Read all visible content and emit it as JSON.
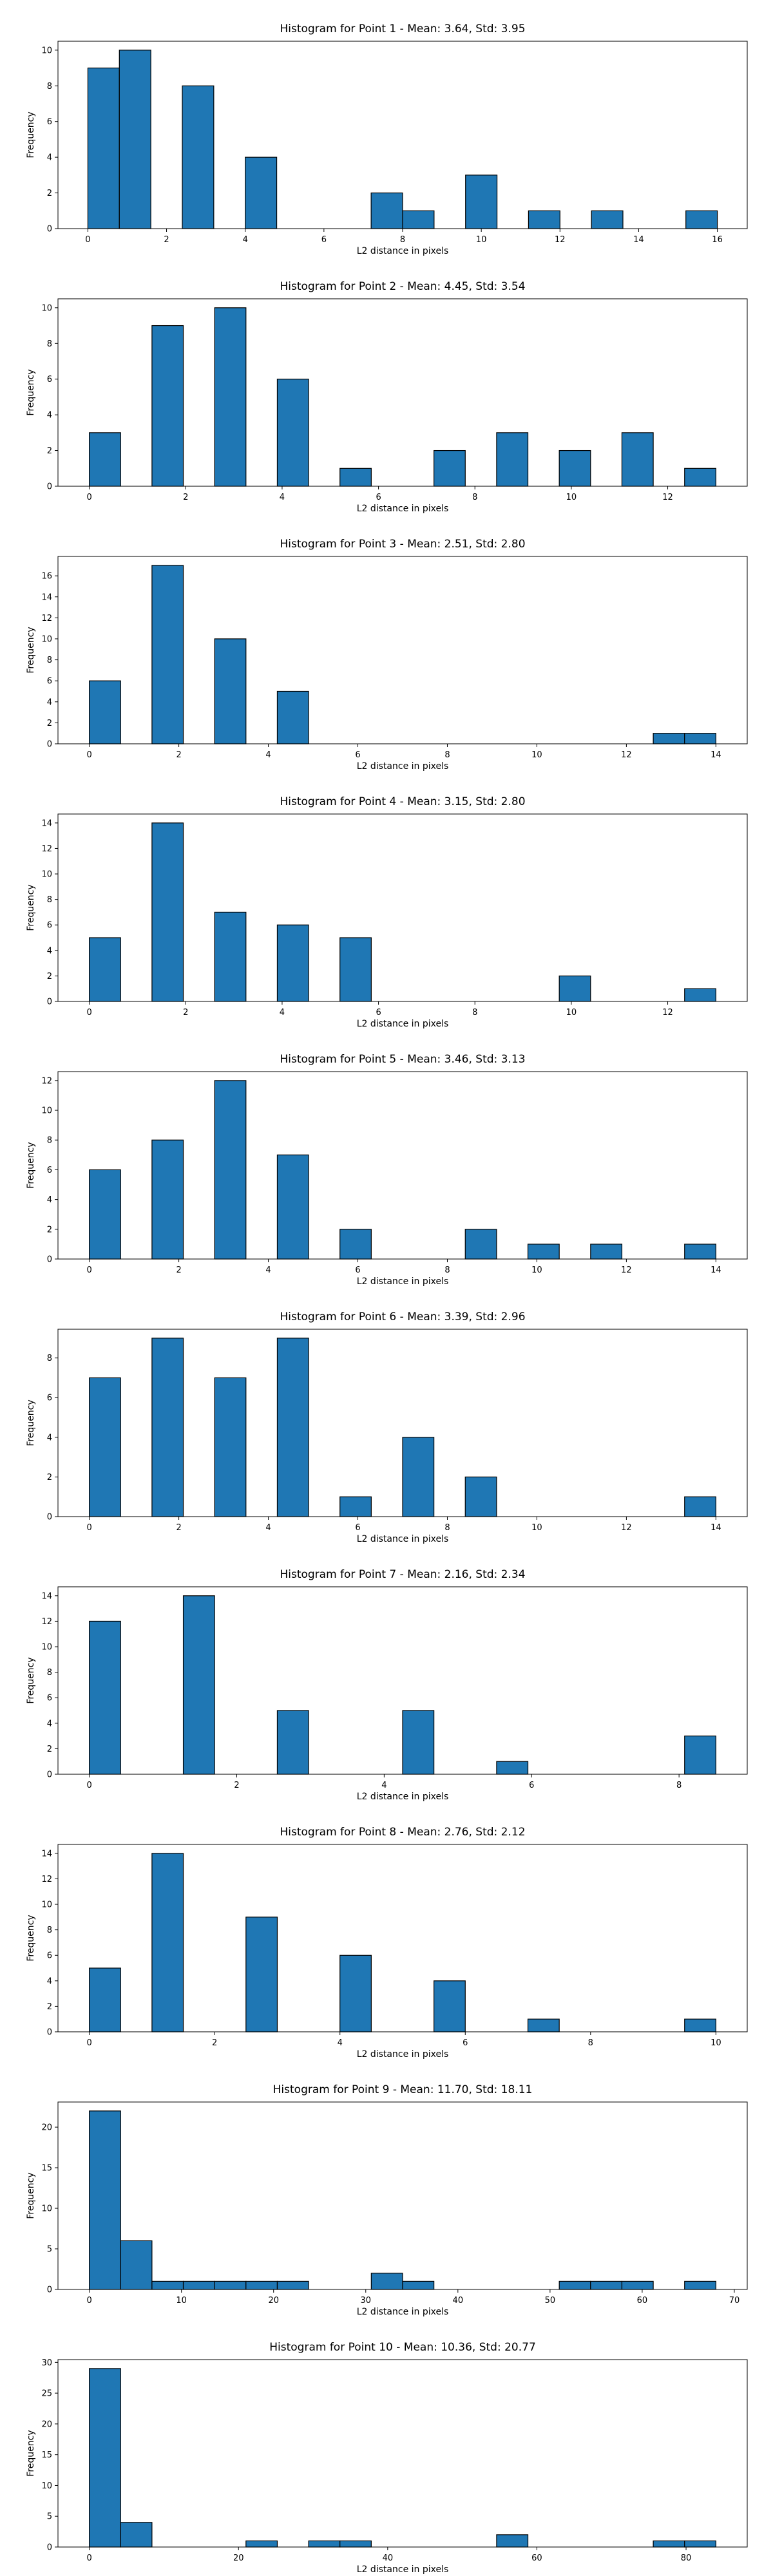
{
  "bar_color": "#1f77b4",
  "edge_color": "#000000",
  "chart_data": [
    {
      "type": "bar",
      "title": "Histogram for Point 1 - Mean: 3.64, Std: 3.95",
      "xlabel": "L2 distance in pixels",
      "ylabel": "Frequency",
      "bin_width": 0.8,
      "bin_starts": [
        0.0,
        0.8,
        1.6,
        2.4,
        3.2,
        4.0,
        4.8,
        5.6,
        6.4,
        7.2,
        8.0,
        8.8,
        9.6,
        10.4,
        11.2,
        12.0,
        12.8,
        13.6,
        14.4,
        15.2
      ],
      "values": [
        9,
        10,
        0,
        8,
        0,
        4,
        0,
        0,
        0,
        2,
        1,
        0,
        3,
        0,
        1,
        0,
        1,
        0,
        0,
        1
      ],
      "xlim": [
        -0.76,
        16.76
      ],
      "ylim": [
        0,
        10.5
      ],
      "xticks": [
        0,
        2,
        4,
        6,
        8,
        10,
        12,
        14,
        16
      ],
      "yticks": [
        0,
        2,
        4,
        6,
        8,
        10
      ]
    },
    {
      "type": "bar",
      "title": "Histogram for Point 2 - Mean: 4.45, Std: 3.54",
      "xlabel": "L2 distance in pixels",
      "ylabel": "Frequency",
      "bin_width": 0.65,
      "bin_starts": [
        0.0,
        0.65,
        1.3,
        1.95,
        2.6,
        3.25,
        3.9,
        4.55,
        5.2,
        5.85,
        6.5,
        7.15,
        7.8,
        8.45,
        9.1,
        9.75,
        10.4,
        11.05,
        11.7,
        12.35
      ],
      "values": [
        3,
        0,
        9,
        0,
        10,
        0,
        6,
        0,
        1,
        0,
        0,
        2,
        0,
        3,
        0,
        2,
        0,
        3,
        0,
        1
      ],
      "xlim": [
        -0.65,
        13.65
      ],
      "ylim": [
        0,
        10.5
      ],
      "xticks": [
        0,
        2,
        4,
        6,
        8,
        10,
        12
      ],
      "yticks": [
        0,
        2,
        4,
        6,
        8,
        10
      ]
    },
    {
      "type": "bar",
      "title": "Histogram for Point 3 - Mean: 2.51, Std: 2.80",
      "xlabel": "L2 distance in pixels",
      "ylabel": "Frequency",
      "bin_width": 0.7,
      "bin_starts": [
        0.0,
        0.7,
        1.4,
        2.1,
        2.8,
        3.5,
        4.2,
        4.9,
        5.6,
        6.3,
        7.0,
        7.7,
        8.4,
        9.1,
        9.8,
        10.5,
        11.2,
        11.9,
        12.6,
        13.3
      ],
      "values": [
        6,
        0,
        17,
        0,
        10,
        0,
        5,
        0,
        0,
        0,
        0,
        0,
        0,
        0,
        0,
        0,
        0,
        0,
        1,
        1
      ],
      "xlim": [
        -0.7,
        14.7
      ],
      "ylim": [
        0,
        17.85
      ],
      "xticks": [
        0,
        2,
        4,
        6,
        8,
        10,
        12,
        14
      ],
      "yticks": [
        0,
        2,
        4,
        6,
        8,
        10,
        12,
        14,
        16
      ]
    },
    {
      "type": "bar",
      "title": "Histogram for Point 4 - Mean: 3.15, Std: 2.80",
      "xlabel": "L2 distance in pixels",
      "ylabel": "Frequency",
      "bin_width": 0.65,
      "bin_starts": [
        0.0,
        0.65,
        1.3,
        1.95,
        2.6,
        3.25,
        3.9,
        4.55,
        5.2,
        5.85,
        6.5,
        7.15,
        7.8,
        8.45,
        9.1,
        9.75,
        10.4,
        11.05,
        11.7,
        12.35
      ],
      "values": [
        5,
        0,
        14,
        0,
        7,
        0,
        6,
        0,
        5,
        0,
        0,
        0,
        0,
        0,
        0,
        2,
        0,
        0,
        0,
        1
      ],
      "xlim": [
        -0.65,
        13.65
      ],
      "ylim": [
        0,
        14.7
      ],
      "xticks": [
        0,
        2,
        4,
        6,
        8,
        10,
        12
      ],
      "yticks": [
        0,
        2,
        4,
        6,
        8,
        10,
        12,
        14
      ]
    },
    {
      "type": "bar",
      "title": "Histogram for Point 5 - Mean: 3.46, Std: 3.13",
      "xlabel": "L2 distance in pixels",
      "ylabel": "Frequency",
      "bin_width": 0.7,
      "bin_starts": [
        0.0,
        0.7,
        1.4,
        2.1,
        2.8,
        3.5,
        4.2,
        4.9,
        5.6,
        6.3,
        7.0,
        7.7,
        8.4,
        9.1,
        9.8,
        10.5,
        11.2,
        11.9,
        12.6,
        13.3
      ],
      "values": [
        6,
        0,
        8,
        0,
        12,
        0,
        7,
        0,
        2,
        0,
        0,
        0,
        2,
        0,
        1,
        0,
        1,
        0,
        0,
        1
      ],
      "xlim": [
        -0.7,
        14.7
      ],
      "ylim": [
        0,
        12.6
      ],
      "xticks": [
        0,
        2,
        4,
        6,
        8,
        10,
        12,
        14
      ],
      "yticks": [
        0,
        2,
        4,
        6,
        8,
        10,
        12
      ]
    },
    {
      "type": "bar",
      "title": "Histogram for Point 6 - Mean: 3.39, Std: 2.96",
      "xlabel": "L2 distance in pixels",
      "ylabel": "Frequency",
      "bin_width": 0.7,
      "bin_starts": [
        0.0,
        0.7,
        1.4,
        2.1,
        2.8,
        3.5,
        4.2,
        4.9,
        5.6,
        6.3,
        7.0,
        7.7,
        8.4,
        9.1,
        9.8,
        10.5,
        11.2,
        11.9,
        12.6,
        13.3
      ],
      "values": [
        7,
        0,
        9,
        0,
        7,
        0,
        9,
        0,
        1,
        0,
        4,
        0,
        2,
        0,
        0,
        0,
        0,
        0,
        0,
        1
      ],
      "xlim": [
        -0.7,
        14.7
      ],
      "ylim": [
        0,
        9.45
      ],
      "xticks": [
        0,
        2,
        4,
        6,
        8,
        10,
        12,
        14
      ],
      "yticks": [
        0,
        2,
        4,
        6,
        8
      ]
    },
    {
      "type": "bar",
      "title": "Histogram for Point 7 - Mean: 2.16, Std: 2.34",
      "xlabel": "L2 distance in pixels",
      "ylabel": "Frequency",
      "bin_width": 0.425,
      "bin_starts": [
        0.0,
        0.425,
        0.85,
        1.275,
        1.7,
        2.125,
        2.55,
        2.975,
        3.4,
        3.825,
        4.25,
        4.675,
        5.1,
        5.525,
        5.95,
        6.375,
        6.8,
        7.225,
        7.65,
        8.075
      ],
      "values": [
        12,
        0,
        0,
        14,
        0,
        0,
        5,
        0,
        0,
        0,
        5,
        0,
        0,
        1,
        0,
        0,
        0,
        0,
        0,
        3
      ],
      "xlim": [
        -0.425,
        8.925
      ],
      "ylim": [
        0,
        14.7
      ],
      "xticks": [
        0,
        2,
        4,
        6,
        8
      ],
      "yticks": [
        0,
        2,
        4,
        6,
        8,
        10,
        12,
        14
      ]
    },
    {
      "type": "bar",
      "title": "Histogram for Point 8 - Mean: 2.76, Std: 2.12",
      "xlabel": "L2 distance in pixels",
      "ylabel": "Frequency",
      "bin_width": 0.5,
      "bin_starts": [
        0.0,
        0.5,
        1.0,
        1.5,
        2.0,
        2.5,
        3.0,
        3.5,
        4.0,
        4.5,
        5.0,
        5.5,
        6.0,
        6.5,
        7.0,
        7.5,
        8.0,
        8.5,
        9.0,
        9.5
      ],
      "values": [
        5,
        0,
        14,
        0,
        0,
        9,
        0,
        0,
        6,
        0,
        0,
        4,
        0,
        0,
        1,
        0,
        0,
        0,
        0,
        1
      ],
      "xlim": [
        -0.5,
        10.5
      ],
      "ylim": [
        0,
        14.7
      ],
      "xticks": [
        0,
        2,
        4,
        6,
        8,
        10
      ],
      "yticks": [
        0,
        2,
        4,
        6,
        8,
        10,
        12,
        14
      ]
    },
    {
      "type": "bar",
      "title": "Histogram for Point 9 - Mean: 11.70, Std: 18.11",
      "xlabel": "L2 distance in pixels",
      "ylabel": "Frequency",
      "bin_width": 3.4,
      "bin_starts": [
        0.0,
        3.4,
        6.8,
        10.2,
        13.6,
        17.0,
        20.4,
        23.8,
        27.2,
        30.6,
        34.0,
        37.4,
        40.8,
        44.2,
        47.6,
        51.0,
        54.4,
        57.8,
        61.2,
        64.6
      ],
      "values": [
        22,
        6,
        1,
        1,
        1,
        1,
        1,
        0,
        0,
        2,
        1,
        0,
        0,
        0,
        0,
        1,
        1,
        1,
        0,
        1
      ],
      "xlim": [
        -3.4,
        71.4
      ],
      "ylim": [
        0,
        23.1
      ],
      "xticks": [
        0,
        10,
        20,
        30,
        40,
        50,
        60,
        70
      ],
      "yticks": [
        0,
        5,
        10,
        15,
        20
      ]
    },
    {
      "type": "bar",
      "title": "Histogram for Point 10 - Mean: 10.36, Std: 20.77",
      "xlabel": "L2 distance in pixels",
      "ylabel": "Frequency",
      "bin_width": 4.2,
      "bin_starts": [
        0.0,
        4.2,
        8.4,
        12.6,
        16.8,
        21.0,
        25.2,
        29.4,
        33.6,
        37.8,
        42.0,
        46.2,
        50.4,
        54.6,
        58.8,
        63.0,
        67.2,
        71.4,
        75.6,
        79.8
      ],
      "values": [
        29,
        4,
        0,
        0,
        0,
        1,
        0,
        1,
        1,
        0,
        0,
        0,
        0,
        2,
        0,
        0,
        0,
        0,
        1,
        1
      ],
      "xlim": [
        -4.2,
        88.2
      ],
      "ylim": [
        0,
        30.45
      ],
      "xticks": [
        0,
        20,
        40,
        60,
        80
      ],
      "yticks": [
        0,
        5,
        10,
        15,
        20,
        25,
        30
      ]
    }
  ]
}
